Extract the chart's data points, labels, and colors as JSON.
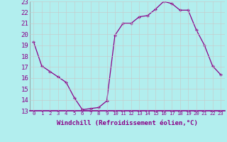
{
  "x": [
    0,
    1,
    2,
    3,
    4,
    5,
    6,
    7,
    8,
    9,
    10,
    11,
    12,
    13,
    14,
    15,
    16,
    17,
    18,
    19,
    20,
    21,
    22,
    23
  ],
  "y": [
    19.3,
    17.1,
    16.6,
    16.1,
    15.6,
    14.2,
    13.1,
    13.2,
    13.3,
    13.9,
    19.9,
    21.0,
    21.0,
    21.6,
    21.7,
    22.3,
    23.0,
    22.8,
    22.2,
    22.2,
    20.4,
    19.0,
    17.1,
    16.3
  ],
  "xlim": [
    -0.5,
    23.5
  ],
  "ylim": [
    13,
    23
  ],
  "yticks": [
    13,
    14,
    15,
    16,
    17,
    18,
    19,
    20,
    21,
    22,
    23
  ],
  "xticks": [
    0,
    1,
    2,
    3,
    4,
    5,
    6,
    7,
    8,
    9,
    10,
    11,
    12,
    13,
    14,
    15,
    16,
    17,
    18,
    19,
    20,
    21,
    22,
    23
  ],
  "xlabel": "Windchill (Refroidissement éolien,°C)",
  "line_color": "#880088",
  "marker": "+",
  "bg_color": "#b2eeee",
  "grid_color": "#c8c8c8",
  "tick_color": "#880088",
  "label_color": "#880088",
  "xlabel_fontsize": 6.5,
  "ytick_fontsize": 6.5,
  "xtick_fontsize": 5.2
}
